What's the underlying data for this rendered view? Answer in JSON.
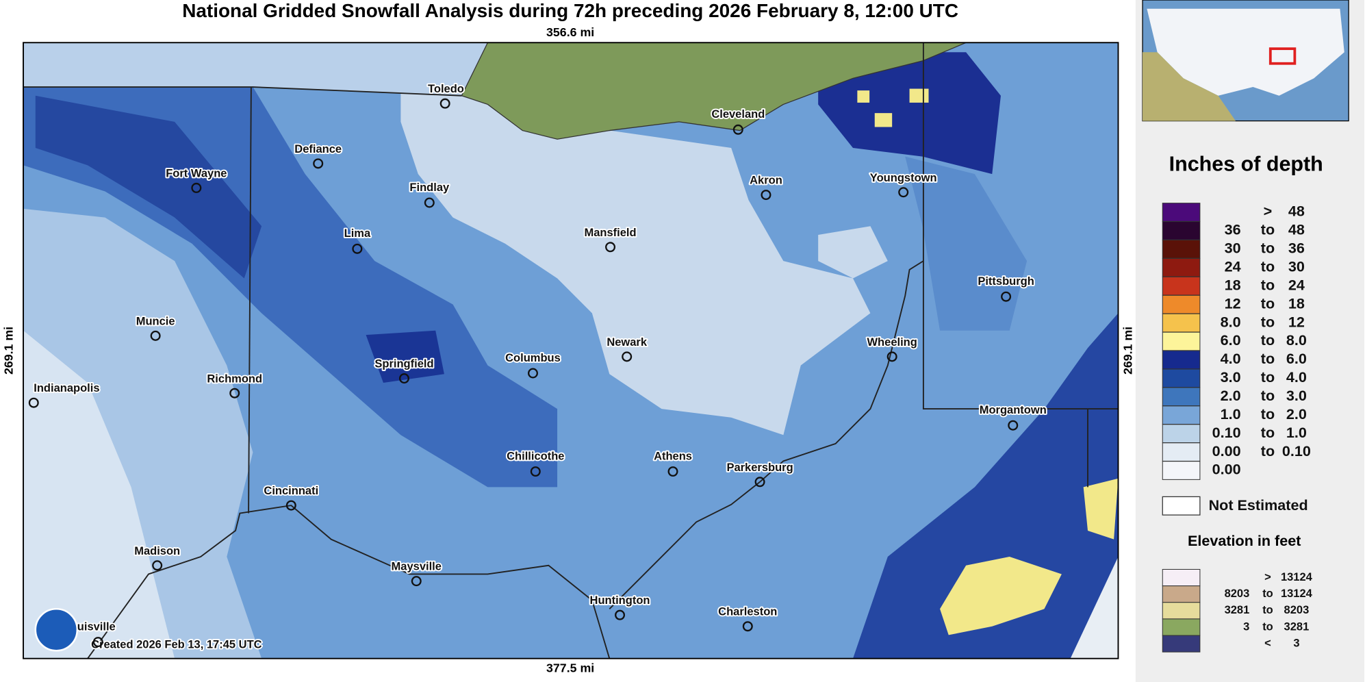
{
  "title": "National Gridded Snowfall Analysis during 72h preceding 2026 February 8, 12:00 UTC",
  "scale": {
    "top": "356.6 mi",
    "bottom": "377.5 mi",
    "left": "269.1 mi",
    "right": "269.1 mi"
  },
  "cities": [
    "Toledo",
    "Cleveland",
    "Defiance",
    "Fort Wayne",
    "Findlay",
    "Akron",
    "Youngstown",
    "Lima",
    "Mansfield",
    "Pittsburgh",
    "Muncie",
    "Newark",
    "Wheeling",
    "Springfield",
    "Columbus",
    "Richmond",
    "Indianapolis",
    "Morgantown",
    "Chillicothe",
    "Athens",
    "Parkersburg",
    "Cincinnati",
    "Madison",
    "Maysville",
    "Huntington",
    "Charleston",
    "uisville"
  ],
  "footer": "Created 2026 Feb 13, 17:45 UTC",
  "legend": {
    "title": "Inches of depth",
    "rows": [
      {
        "color": "#4b0a7a",
        "sep": ">",
        "high": "48"
      },
      {
        "color": "#2a0530",
        "low": "36",
        "sep": "to",
        "high": "48"
      },
      {
        "color": "#5a1208",
        "low": "30",
        "sep": "to",
        "high": "36"
      },
      {
        "color": "#8e1a10",
        "low": "24",
        "sep": "to",
        "high": "30"
      },
      {
        "color": "#c8341c",
        "low": "18",
        "sep": "to",
        "high": "24"
      },
      {
        "color": "#ee8a2a",
        "low": "12",
        "sep": "to",
        "high": "18"
      },
      {
        "color": "#f5c24c",
        "low": "8.0",
        "sep": "to",
        "high": "12"
      },
      {
        "color": "#fdf49a",
        "low": "6.0",
        "sep": "to",
        "high": "8.0"
      },
      {
        "color": "#162a8e",
        "low": "4.0",
        "sep": "to",
        "high": "6.0"
      },
      {
        "color": "#1e4aa0",
        "low": "3.0",
        "sep": "to",
        "high": "4.0"
      },
      {
        "color": "#3e76bc",
        "low": "2.0",
        "sep": "to",
        "high": "3.0"
      },
      {
        "color": "#79a6d8",
        "low": "1.0",
        "sep": "to",
        "high": "2.0"
      },
      {
        "color": "#bcd3e8",
        "low": "0.10",
        "sep": "to",
        "high": "1.0"
      },
      {
        "color": "#e4ecf4",
        "low": "0.00",
        "sep": "to",
        "high": "0.10"
      },
      {
        "color": "#f4f6fa",
        "low": "0.00"
      }
    ]
  },
  "not_estimated": "Not Estimated",
  "elevation": {
    "title": "Elevation in feet",
    "rows": [
      {
        "color": "#f6eef6",
        "sep": ">",
        "high": "13124"
      },
      {
        "color": "#c9a98a",
        "low": "8203",
        "sep": "to",
        "high": "13124"
      },
      {
        "color": "#e6dc9c",
        "low": "3281",
        "sep": "to",
        "high": "8203"
      },
      {
        "color": "#8aa860",
        "low": "3",
        "sep": "to",
        "high": "3281"
      },
      {
        "color": "#363a7a",
        "sep": "<",
        "high": "3"
      }
    ]
  }
}
